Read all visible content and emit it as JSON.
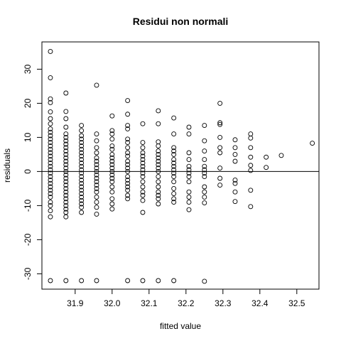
{
  "chart_data": {
    "type": "scatter",
    "title": "Residui non normali",
    "xlabel": "fitted value",
    "ylabel": "residuals",
    "xlim": [
      31.81,
      32.56
    ],
    "ylim": [
      -34.5,
      38
    ],
    "x_ticks": [
      31.9,
      32.0,
      32.1,
      32.2,
      32.3,
      32.4,
      32.5
    ],
    "x_tick_labels": [
      "31.9",
      "32.0",
      "32.1",
      "32.2",
      "32.3",
      "32.4",
      "32.5"
    ],
    "y_ticks": [
      -30,
      -20,
      -10,
      0,
      10,
      20,
      30
    ],
    "y_tick_labels": [
      "-30",
      "-20",
      "-10",
      "0",
      "10",
      "20",
      "30"
    ],
    "reference_line_y": 0,
    "grid": false,
    "legend": "none",
    "point_style": "open circle",
    "colors": {
      "points": "#000000",
      "axis": "#000000",
      "background": "#ffffff"
    },
    "points": [
      [
        31.833,
        35.2
      ],
      [
        31.833,
        27.5
      ],
      [
        31.833,
        21.3
      ],
      [
        31.833,
        20.2
      ],
      [
        31.833,
        17.5
      ],
      [
        31.833,
        15.5
      ],
      [
        31.833,
        14.0
      ],
      [
        31.833,
        12.5
      ],
      [
        31.833,
        11.5
      ],
      [
        31.833,
        10.5
      ],
      [
        31.833,
        9.5
      ],
      [
        31.833,
        8.5
      ],
      [
        31.833,
        7.5
      ],
      [
        31.833,
        6.5
      ],
      [
        31.833,
        5.5
      ],
      [
        31.833,
        4.5
      ],
      [
        31.833,
        3.5
      ],
      [
        31.833,
        2.5
      ],
      [
        31.833,
        1.5
      ],
      [
        31.833,
        0.5
      ],
      [
        31.833,
        -0.5
      ],
      [
        31.833,
        -1.5
      ],
      [
        31.833,
        -2.5
      ],
      [
        31.833,
        -3.5
      ],
      [
        31.833,
        -4.5
      ],
      [
        31.833,
        -5.5
      ],
      [
        31.833,
        -6.5
      ],
      [
        31.833,
        -7.5
      ],
      [
        31.833,
        -9.0
      ],
      [
        31.833,
        -10.0
      ],
      [
        31.833,
        -11.5
      ],
      [
        31.833,
        -13.3
      ],
      [
        31.833,
        -32.0
      ],
      [
        31.875,
        23.0
      ],
      [
        31.875,
        17.6
      ],
      [
        31.875,
        15.5
      ],
      [
        31.875,
        13.0
      ],
      [
        31.875,
        11.0
      ],
      [
        31.875,
        10.0
      ],
      [
        31.875,
        9.0
      ],
      [
        31.875,
        8.0
      ],
      [
        31.875,
        7.0
      ],
      [
        31.875,
        6.0
      ],
      [
        31.875,
        5.0
      ],
      [
        31.875,
        4.0
      ],
      [
        31.875,
        3.0
      ],
      [
        31.875,
        2.0
      ],
      [
        31.875,
        1.0
      ],
      [
        31.875,
        0.0
      ],
      [
        31.875,
        -1.0
      ],
      [
        31.875,
        -2.0
      ],
      [
        31.875,
        -3.0
      ],
      [
        31.875,
        -4.0
      ],
      [
        31.875,
        -5.0
      ],
      [
        31.875,
        -6.0
      ],
      [
        31.875,
        -7.0
      ],
      [
        31.875,
        -8.0
      ],
      [
        31.875,
        -9.0
      ],
      [
        31.875,
        -10.0
      ],
      [
        31.875,
        -11.0
      ],
      [
        31.875,
        -12.0
      ],
      [
        31.875,
        -13.3
      ],
      [
        31.875,
        -32.0
      ],
      [
        31.917,
        13.5
      ],
      [
        31.917,
        12.0
      ],
      [
        31.917,
        10.5
      ],
      [
        31.917,
        9.5
      ],
      [
        31.917,
        8.5
      ],
      [
        31.917,
        7.5
      ],
      [
        31.917,
        6.5
      ],
      [
        31.917,
        5.5
      ],
      [
        31.917,
        4.5
      ],
      [
        31.917,
        3.5
      ],
      [
        31.917,
        2.5
      ],
      [
        31.917,
        1.5
      ],
      [
        31.917,
        0.5
      ],
      [
        31.917,
        -0.5
      ],
      [
        31.917,
        -1.5
      ],
      [
        31.917,
        -2.5
      ],
      [
        31.917,
        -3.5
      ],
      [
        31.917,
        -4.5
      ],
      [
        31.917,
        -5.5
      ],
      [
        31.917,
        -6.5
      ],
      [
        31.917,
        -7.5
      ],
      [
        31.917,
        -8.5
      ],
      [
        31.917,
        -9.5
      ],
      [
        31.917,
        -10.5
      ],
      [
        31.917,
        -12.0
      ],
      [
        31.917,
        -32.0
      ],
      [
        31.958,
        25.3
      ],
      [
        31.958,
        11.0
      ],
      [
        31.958,
        9.0
      ],
      [
        31.958,
        7.0
      ],
      [
        31.958,
        5.5
      ],
      [
        31.958,
        4.0
      ],
      [
        31.958,
        3.0
      ],
      [
        31.958,
        2.0
      ],
      [
        31.958,
        1.0
      ],
      [
        31.958,
        0.0
      ],
      [
        31.958,
        -1.0
      ],
      [
        31.958,
        -2.0
      ],
      [
        31.958,
        -3.0
      ],
      [
        31.958,
        -4.0
      ],
      [
        31.958,
        -5.0
      ],
      [
        31.958,
        -6.0
      ],
      [
        31.958,
        -7.5
      ],
      [
        31.958,
        -9.0
      ],
      [
        31.958,
        -10.5
      ],
      [
        31.958,
        -12.5
      ],
      [
        31.958,
        -32.0
      ],
      [
        32.0,
        16.3
      ],
      [
        32.0,
        12.0
      ],
      [
        32.0,
        11.0
      ],
      [
        32.0,
        9.5
      ],
      [
        32.0,
        7.5
      ],
      [
        32.0,
        6.5
      ],
      [
        32.0,
        5.0
      ],
      [
        32.0,
        4.0
      ],
      [
        32.0,
        3.0
      ],
      [
        32.0,
        2.0
      ],
      [
        32.0,
        1.0
      ],
      [
        32.0,
        0.0
      ],
      [
        32.0,
        -1.0
      ],
      [
        32.0,
        -2.0
      ],
      [
        32.0,
        -3.0
      ],
      [
        32.0,
        -4.5
      ],
      [
        32.0,
        -6.0
      ],
      [
        32.0,
        -8.0
      ],
      [
        32.0,
        -9.5
      ],
      [
        32.0,
        -11.0
      ],
      [
        32.042,
        20.8
      ],
      [
        32.042,
        16.8
      ],
      [
        32.042,
        13.5
      ],
      [
        32.042,
        12.5
      ],
      [
        32.042,
        9.5
      ],
      [
        32.042,
        8.5
      ],
      [
        32.042,
        7.0
      ],
      [
        32.042,
        5.5
      ],
      [
        32.042,
        4.5
      ],
      [
        32.042,
        3.0
      ],
      [
        32.042,
        2.0
      ],
      [
        32.042,
        1.0
      ],
      [
        32.042,
        0.0
      ],
      [
        32.042,
        -1.5
      ],
      [
        32.042,
        -2.5
      ],
      [
        32.042,
        -3.5
      ],
      [
        32.042,
        -4.5
      ],
      [
        32.042,
        -5.5
      ],
      [
        32.042,
        -7.0
      ],
      [
        32.042,
        -8.0
      ],
      [
        32.042,
        -32.0
      ],
      [
        32.083,
        14.0
      ],
      [
        32.083,
        8.5
      ],
      [
        32.083,
        7.0
      ],
      [
        32.083,
        5.5
      ],
      [
        32.083,
        4.5
      ],
      [
        32.083,
        3.5
      ],
      [
        32.083,
        2.5
      ],
      [
        32.083,
        1.5
      ],
      [
        32.083,
        0.5
      ],
      [
        32.083,
        -0.5
      ],
      [
        32.083,
        -1.5
      ],
      [
        32.083,
        -3.0
      ],
      [
        32.083,
        -4.5
      ],
      [
        32.083,
        -6.0
      ],
      [
        32.083,
        -7.0
      ],
      [
        32.083,
        -8.5
      ],
      [
        32.083,
        -12.0
      ],
      [
        32.083,
        -32.0
      ],
      [
        32.125,
        17.8
      ],
      [
        32.125,
        14.0
      ],
      [
        32.125,
        8.7
      ],
      [
        32.125,
        7.5
      ],
      [
        32.125,
        6.0
      ],
      [
        32.125,
        5.0
      ],
      [
        32.125,
        4.0
      ],
      [
        32.125,
        3.0
      ],
      [
        32.125,
        2.0
      ],
      [
        32.125,
        1.0
      ],
      [
        32.125,
        0.0
      ],
      [
        32.125,
        -1.5
      ],
      [
        32.125,
        -3.0
      ],
      [
        32.125,
        -4.5
      ],
      [
        32.125,
        -6.0
      ],
      [
        32.125,
        -7.0
      ],
      [
        32.125,
        -8.0
      ],
      [
        32.125,
        -9.5
      ],
      [
        32.125,
        -32.0
      ],
      [
        32.167,
        15.7
      ],
      [
        32.167,
        11.0
      ],
      [
        32.167,
        7.0
      ],
      [
        32.167,
        6.0
      ],
      [
        32.167,
        5.0
      ],
      [
        32.167,
        3.5
      ],
      [
        32.167,
        2.5
      ],
      [
        32.167,
        1.5
      ],
      [
        32.167,
        0.5
      ],
      [
        32.167,
        -0.5
      ],
      [
        32.167,
        -1.5
      ],
      [
        32.167,
        -3.0
      ],
      [
        32.167,
        -5.0
      ],
      [
        32.167,
        -6.5
      ],
      [
        32.167,
        -8.0
      ],
      [
        32.167,
        -9.0
      ],
      [
        32.167,
        -32.0
      ],
      [
        32.208,
        13.0
      ],
      [
        32.208,
        11.0
      ],
      [
        32.208,
        5.5
      ],
      [
        32.208,
        3.5
      ],
      [
        32.208,
        1.5
      ],
      [
        32.208,
        0.5
      ],
      [
        32.208,
        -0.5
      ],
      [
        32.208,
        -1.5
      ],
      [
        32.208,
        -3.0
      ],
      [
        32.208,
        -6.0
      ],
      [
        32.208,
        -7.5
      ],
      [
        32.208,
        -9.0
      ],
      [
        32.208,
        -11.2
      ],
      [
        32.25,
        13.5
      ],
      [
        32.25,
        9.0
      ],
      [
        32.25,
        6.0
      ],
      [
        32.25,
        3.5
      ],
      [
        32.25,
        1.5
      ],
      [
        32.25,
        0.5
      ],
      [
        32.25,
        -0.5
      ],
      [
        32.25,
        -1.5
      ],
      [
        32.25,
        -4.5
      ],
      [
        32.25,
        -6.0
      ],
      [
        32.25,
        -7.5
      ],
      [
        32.25,
        -9.2
      ],
      [
        32.25,
        -32.2
      ],
      [
        32.292,
        20.0
      ],
      [
        32.292,
        14.3
      ],
      [
        32.292,
        13.8
      ],
      [
        32.292,
        10.0
      ],
      [
        32.292,
        7.0
      ],
      [
        32.292,
        5.5
      ],
      [
        32.292,
        1.0
      ],
      [
        32.292,
        -2.0
      ],
      [
        32.292,
        -4.0
      ],
      [
        32.333,
        9.3
      ],
      [
        32.333,
        7.0
      ],
      [
        32.333,
        5.0
      ],
      [
        32.333,
        3.0
      ],
      [
        32.333,
        -2.5
      ],
      [
        32.333,
        -3.5
      ],
      [
        32.333,
        -6.0
      ],
      [
        32.333,
        -8.8
      ],
      [
        32.375,
        11.0
      ],
      [
        32.375,
        9.8
      ],
      [
        32.375,
        7.0
      ],
      [
        32.375,
        4.2
      ],
      [
        32.375,
        1.8
      ],
      [
        32.375,
        0.3
      ],
      [
        32.375,
        -5.5
      ],
      [
        32.375,
        -10.3
      ],
      [
        32.417,
        4.2
      ],
      [
        32.417,
        1.2
      ],
      [
        32.458,
        4.7
      ],
      [
        32.542,
        8.3
      ]
    ]
  }
}
